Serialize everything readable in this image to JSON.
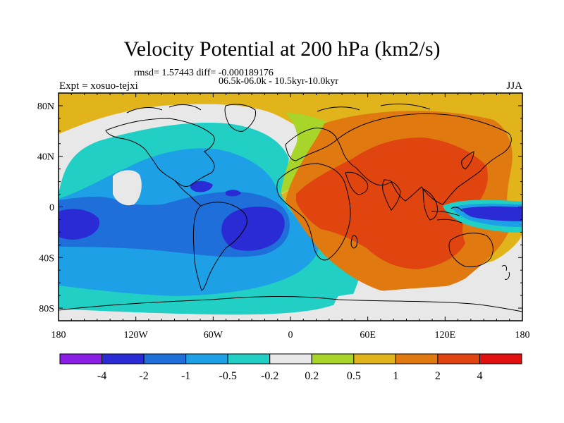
{
  "title": "Velocity Potential at 200 hPa (km2/s)",
  "stats_line": "rmsd= 1.57443 diff= -0.000189176",
  "period_line": "06.5k-06.0k - 10.5kyr-10.0kyr",
  "left_label": "Expt = xosuo-tejxi",
  "right_label": "JJA",
  "axes": {
    "x_ticks": [
      {
        "lon": -180,
        "label": "180"
      },
      {
        "lon": -120,
        "label": "120W"
      },
      {
        "lon": -60,
        "label": "60W"
      },
      {
        "lon": 0,
        "label": "0"
      },
      {
        "lon": 60,
        "label": "60E"
      },
      {
        "lon": 120,
        "label": "120E"
      },
      {
        "lon": 180,
        "label": "180"
      }
    ],
    "y_ticks": [
      {
        "lat": 80,
        "label": "80N"
      },
      {
        "lat": 40,
        "label": "40N"
      },
      {
        "lat": 0,
        "label": "0"
      },
      {
        "lat": -40,
        "label": "40S"
      },
      {
        "lat": -80,
        "label": "80S"
      }
    ],
    "lon_range": [
      -180,
      180
    ],
    "lat_range": [
      -90,
      90
    ]
  },
  "colorbar": {
    "colors": [
      "#8a1fe6",
      "#2b2bd6",
      "#1e6fd9",
      "#1ea0e6",
      "#22cfc4",
      "#e8e8e8",
      "#a8d52a",
      "#e0b41a",
      "#e07a10",
      "#e0440f",
      "#e01010"
    ],
    "labels": [
      "-4",
      "-2",
      "-1",
      "-0.5",
      "-0.2",
      "0.2",
      "0.5",
      "1",
      "2",
      "4"
    ]
  }
}
